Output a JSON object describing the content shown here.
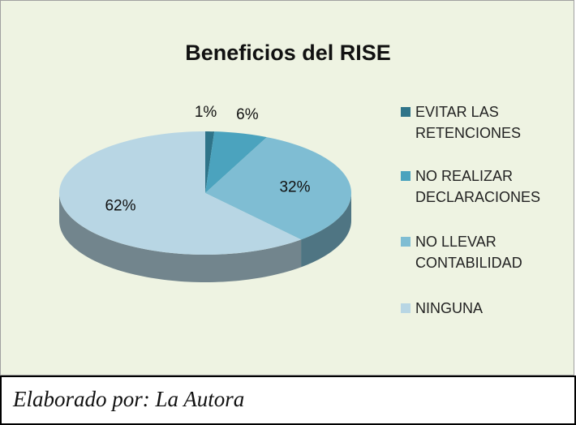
{
  "chart_data": {
    "type": "pie",
    "title": "Beneficios del RISE",
    "categories": [
      "EVITAR LAS RETENCIONES",
      "NO REALIZAR DECLARACIONES",
      "NO LLEVAR CONTABILIDAD",
      "NINGUNA"
    ],
    "values": [
      1,
      6,
      32,
      62
    ],
    "value_labels": [
      "1%",
      "6%",
      "32%",
      "62%"
    ],
    "colors": [
      "#2f7489",
      "#4ba3be",
      "#7fbdd3",
      "#b8d6e4"
    ],
    "legend": "right"
  },
  "footer": "Elaborado por: La Autora"
}
